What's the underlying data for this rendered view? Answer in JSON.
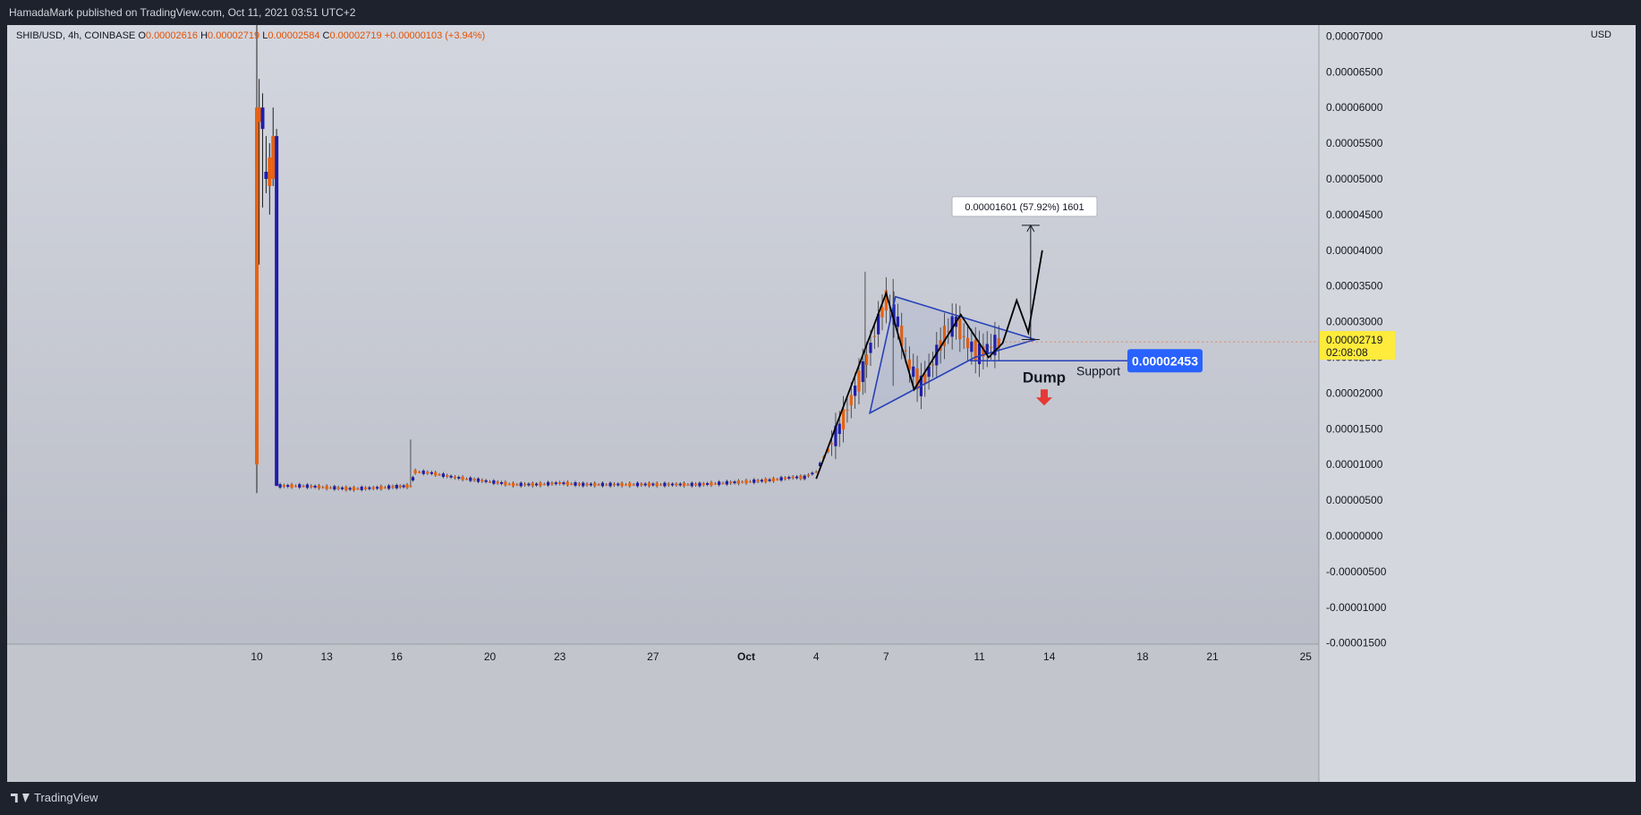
{
  "header": {
    "publisher_line": "HamadaMark published on TradingView.com, Oct 11, 2021 03:51 UTC+2"
  },
  "footer": {
    "brand": "TradingView"
  },
  "legend": {
    "symbol": "SHIB/USD, 4h, COINBASE",
    "o_label": "O",
    "o_value": "0.00002616",
    "h_label": "H",
    "h_value": "0.00002719",
    "l_label": "L",
    "l_value": "0.00002584",
    "c_label": "C",
    "c_value": "0.00002719",
    "change": "+0.00000103 (+3.94%)"
  },
  "colors": {
    "up": "#e8620f",
    "down": "#1f1ea8",
    "pattern": "#2741b8",
    "price_tag_bg": "#ffeb3b",
    "support_tag_bg": "#2962ff",
    "arrow": "#e53935"
  },
  "chart_data": {
    "type": "candlestick",
    "currency_label": "USD",
    "price_tag": {
      "value": "0.00002719",
      "countdown": "02:08:08"
    },
    "y_ticks": [
      "0.00007000",
      "0.00006500",
      "0.00006000",
      "0.00005500",
      "0.00005000",
      "0.00004500",
      "0.00004000",
      "0.00003500",
      "0.00003000",
      "0.00002500",
      "0.00002000",
      "0.00001500",
      "0.00001000",
      "0.00000500",
      "0.00000000",
      "-0.00000500",
      "-0.00001000",
      "-0.00001500"
    ],
    "y_tick_values": [
      7.0,
      6.5,
      6.0,
      5.5,
      5.0,
      4.5,
      4.0,
      3.5,
      3.0,
      2.5,
      2.0,
      1.5,
      1.0,
      0.5,
      0.0,
      -0.5,
      -1.0,
      -1.5
    ],
    "y_unit_note": "values in units of 1e-5 USD",
    "ylim": [
      -1.5,
      7.2
    ],
    "x_ticks": [
      "10",
      "13",
      "16",
      "20",
      "23",
      "27",
      "Oct",
      "4",
      "7",
      "11",
      "14",
      "18",
      "21",
      "25"
    ],
    "x_tick_days": [
      10,
      13,
      16,
      20,
      23,
      27,
      31,
      34,
      37,
      41,
      44,
      48,
      51,
      55
    ],
    "x_axis_note": "days counted from Sep 0, 2021 (Oct 1 = 31)",
    "candles": [
      {
        "t": 10.0,
        "o": 1.0,
        "h": 8.0,
        "l": 0.6,
        "c": 6.0
      },
      {
        "t": 10.1,
        "o": 5.8,
        "h": 6.4,
        "l": 3.8,
        "c": 6.0
      },
      {
        "t": 10.25,
        "o": 6.0,
        "h": 6.2,
        "l": 4.6,
        "c": 5.7
      },
      {
        "t": 10.4,
        "o": 5.1,
        "h": 5.6,
        "l": 4.8,
        "c": 5.0
      },
      {
        "t": 10.55,
        "o": 4.9,
        "h": 5.5,
        "l": 4.5,
        "c": 5.3
      },
      {
        "t": 10.7,
        "o": 5.0,
        "h": 6.0,
        "l": 4.9,
        "c": 5.6
      },
      {
        "t": 10.85,
        "o": 5.6,
        "h": 5.7,
        "l": 0.7,
        "c": 0.7
      }
    ],
    "series_path": [
      [
        11,
        0.7
      ],
      [
        12,
        0.7
      ],
      [
        13,
        0.68
      ],
      [
        14,
        0.66
      ],
      [
        15,
        0.67
      ],
      [
        16,
        0.69
      ],
      [
        16.6,
        0.7
      ],
      [
        16.8,
        0.9
      ],
      [
        17.5,
        0.88
      ],
      [
        18.5,
        0.82
      ],
      [
        19.5,
        0.78
      ],
      [
        20,
        0.76
      ],
      [
        21,
        0.72
      ],
      [
        22,
        0.72
      ],
      [
        23,
        0.74
      ],
      [
        24,
        0.72
      ],
      [
        25,
        0.72
      ],
      [
        26,
        0.72
      ],
      [
        27,
        0.72
      ],
      [
        28,
        0.72
      ],
      [
        29,
        0.72
      ],
      [
        30,
        0.74
      ],
      [
        31,
        0.76
      ],
      [
        32,
        0.78
      ],
      [
        33,
        0.82
      ],
      [
        33.5,
        0.82
      ],
      [
        34,
        0.9
      ],
      [
        34.5,
        1.2
      ],
      [
        35,
        1.5
      ],
      [
        35.5,
        1.9
      ],
      [
        36,
        2.3
      ],
      [
        36.5,
        2.8
      ],
      [
        37,
        3.3
      ],
      [
        37.5,
        3.0
      ],
      [
        38,
        2.4
      ],
      [
        38.5,
        2.1
      ],
      [
        39,
        2.4
      ],
      [
        39.5,
        2.8
      ],
      [
        40,
        3.0
      ],
      [
        40.5,
        2.7
      ],
      [
        41,
        2.55
      ],
      [
        41.5,
        2.65
      ],
      [
        42,
        2.72
      ]
    ],
    "annotations": {
      "measure_label": "0.00001601 (57.92%) 1601",
      "measure_range": [
        2.75,
        4.35
      ],
      "measure_day": 43.2,
      "support_label": "Support",
      "support_value": "0.00002453",
      "support_price": 2.453,
      "dump_label": "Dump",
      "triangle": [
        [
          36.3,
          1.72
        ],
        [
          37.4,
          3.35
        ],
        [
          43.4,
          2.75
        ],
        [
          40.8,
          2.5
        ]
      ],
      "zigzag": [
        [
          34.0,
          0.8
        ],
        [
          37.0,
          3.4
        ],
        [
          38.2,
          2.05
        ],
        [
          40.2,
          3.1
        ],
        [
          41.4,
          2.5
        ],
        [
          42.0,
          2.7
        ],
        [
          42.6,
          3.3
        ],
        [
          43.1,
          2.85
        ],
        [
          43.7,
          4.0
        ]
      ]
    }
  }
}
